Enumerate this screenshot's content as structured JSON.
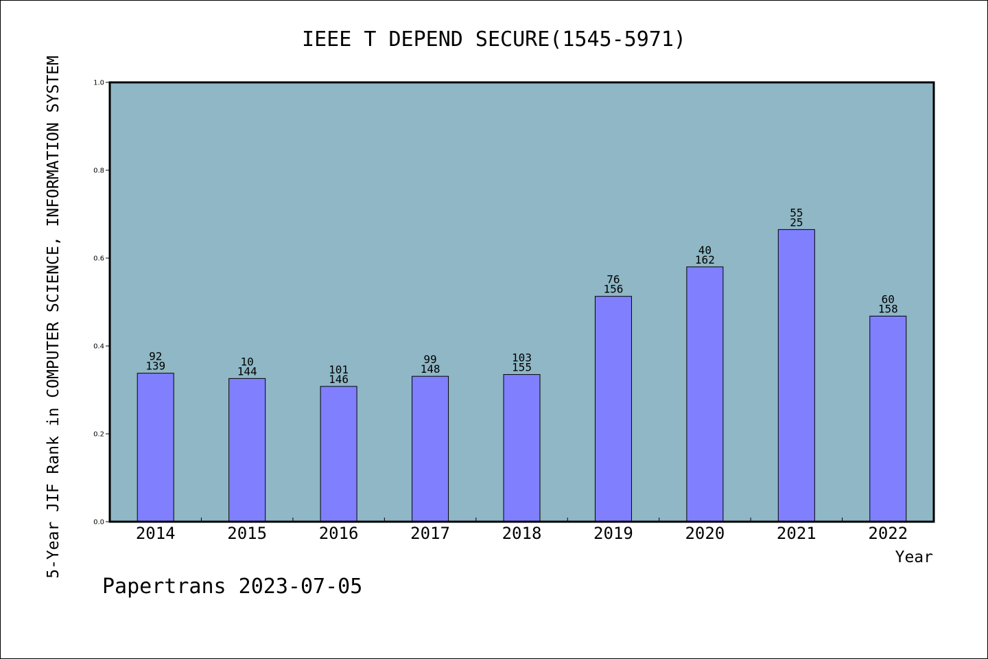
{
  "colors": {
    "plot_background": "#8fb7c5",
    "bar_fill": "#8080ff",
    "bar_stroke": "#000000",
    "frame": "#000000"
  },
  "footer": "Papertrans 2023-07-05",
  "chart_data": {
    "type": "bar",
    "title": "IEEE T DEPEND SECURE(1545-5971)",
    "xlabel": "Year",
    "ylabel": "5-Year JIF Rank in COMPUTER SCIENCE, INFORMATION SYSTEM",
    "ylim": [
      0,
      1.0
    ],
    "yticks": [
      "0.0",
      "0.2",
      "0.4",
      "0.6",
      "0.8",
      "1.0"
    ],
    "categories": [
      "2014",
      "2015",
      "2016",
      "2017",
      "2018",
      "2019",
      "2020",
      "2021",
      "2022"
    ],
    "series": [
      {
        "values": [
          0.338,
          0.326,
          0.308,
          0.331,
          0.335,
          0.513,
          0.58,
          0.665,
          0.468
        ],
        "labels_top": [
          "92",
          "10",
          "101",
          "99",
          "103",
          "76",
          "40",
          "55",
          "60"
        ],
        "labels_bottom": [
          "139",
          "144",
          "146",
          "148",
          "155",
          "156",
          "162",
          "25",
          "158"
        ]
      }
    ],
    "grid": false,
    "legend": "none"
  }
}
